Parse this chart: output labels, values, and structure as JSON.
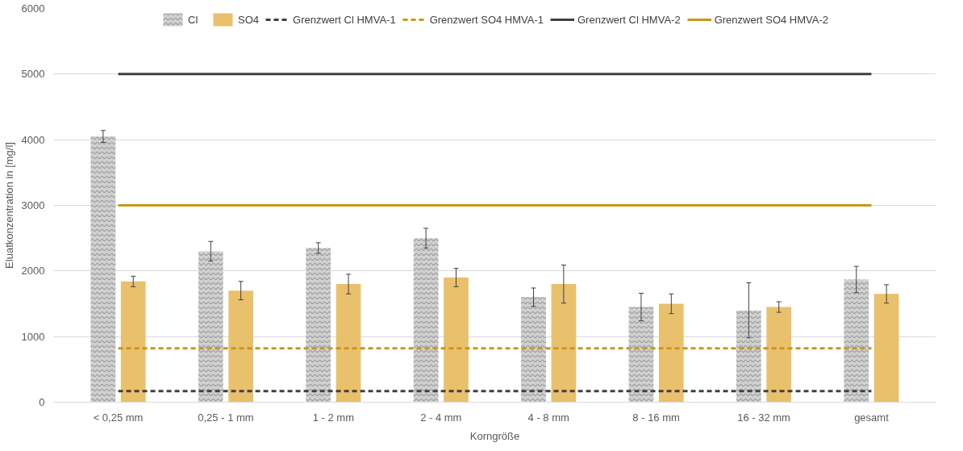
{
  "chart_data": {
    "type": "bar",
    "xlabel": "Korngröße",
    "ylabel": "Eluatkonzentration in [mg/l]",
    "categories": [
      "< 0,25 mm",
      "0,25 - 1 mm",
      "1 - 2 mm",
      "2 - 4 mm",
      "4 - 8 mm",
      "8 - 16 mm",
      "16 - 32 mm",
      "gesamt"
    ],
    "series": [
      {
        "name": "Cl",
        "color": "#d0d0d0",
        "values": [
          4050,
          2300,
          2350,
          2500,
          1600,
          1450,
          1400,
          1870
        ],
        "errors": [
          90,
          150,
          80,
          150,
          140,
          210,
          420,
          200
        ]
      },
      {
        "name": "SO4",
        "color": "#e9c06b",
        "values": [
          1840,
          1700,
          1800,
          1900,
          1800,
          1500,
          1450,
          1650
        ],
        "errors": [
          80,
          140,
          150,
          140,
          290,
          150,
          80,
          140
        ]
      },
      {
        "name": "Grenzwert Cl HMVA-1",
        "type": "line",
        "color": "#404040",
        "line_style": "dashed",
        "values": [
          170,
          170,
          170,
          170,
          170,
          170,
          170,
          170
        ]
      },
      {
        "name": "Grenzwert SO4 HMVA-1",
        "type": "line",
        "color": "#c9961a",
        "line_style": "dashed",
        "values": [
          820,
          820,
          820,
          820,
          820,
          820,
          820,
          820
        ]
      },
      {
        "name": "Grenzwert Cl HMVA-2",
        "type": "line",
        "color": "#404040",
        "line_style": "solid",
        "values": [
          5000,
          5000,
          5000,
          5000,
          5000,
          5000,
          5000,
          5000
        ]
      },
      {
        "name": "Grenzwert SO4 HMVA-2",
        "type": "line",
        "color": "#c9961a",
        "line_style": "solid",
        "values": [
          3000,
          3000,
          3000,
          3000,
          3000,
          3000,
          3000,
          3000
        ]
      }
    ],
    "ylim": [
      0,
      6000
    ],
    "yticks": [
      0,
      1000,
      2000,
      3000,
      4000,
      5000,
      6000
    ],
    "grid": "y",
    "legend": "top"
  }
}
